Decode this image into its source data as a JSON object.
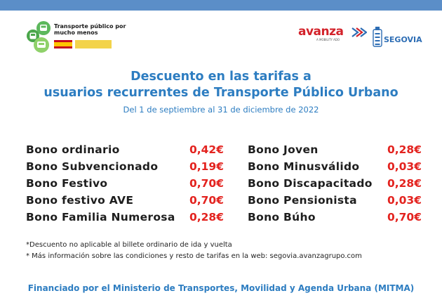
{
  "header": {
    "bar_color": "#5b8ec8",
    "logo_left_text": "Transporte público por mucho menos",
    "logo_left_icon": "transport-vehicles-icon",
    "brand_avanza": "avanza",
    "brand_avanza_sub": "A MOBILITY ADO",
    "brand_segovia": "SEGOVIA"
  },
  "title": {
    "line1": "Descuento en las tarifas a",
    "line2": "usuarios recurrentes de Transporte Público Urbano",
    "subtitle": "Del 1 de septiembre al 31 de diciembre de 2022"
  },
  "prices_left": [
    {
      "name": "Bono ordinario",
      "value": "0,42€"
    },
    {
      "name": "Bono Subvencionado",
      "value": "0,19€"
    },
    {
      "name": "Bono Festivo",
      "value": "0,70€"
    },
    {
      "name": "Bono festivo AVE",
      "value": "0,70€"
    },
    {
      "name": "Bono Familia Numerosa",
      "value": "0,28€"
    }
  ],
  "prices_right": [
    {
      "name": "Bono Joven",
      "value": "0,28€"
    },
    {
      "name": "Bono Minusválido",
      "value": "0,03€"
    },
    {
      "name": "Bono Discapacitado",
      "value": "0,28€"
    },
    {
      "name": "Bono Pensionista",
      "value": "0,03€"
    },
    {
      "name": "Bono Búho",
      "value": "0,70€"
    }
  ],
  "notes": {
    "note1": "*Descuento no aplicable al billete ordinario de ida y vuelta",
    "note2": "* Más información sobre las condiciones y resto de tarifas en la web: segovia.avanzagrupo.com"
  },
  "footer": {
    "text": "Financiado por el Ministerio de Transportes, Movilidad y Agenda Urbana (MITMA)"
  },
  "colors": {
    "accent_blue": "#2d7dc1",
    "price_red": "#e3231f",
    "brand_red": "#d3222a"
  }
}
